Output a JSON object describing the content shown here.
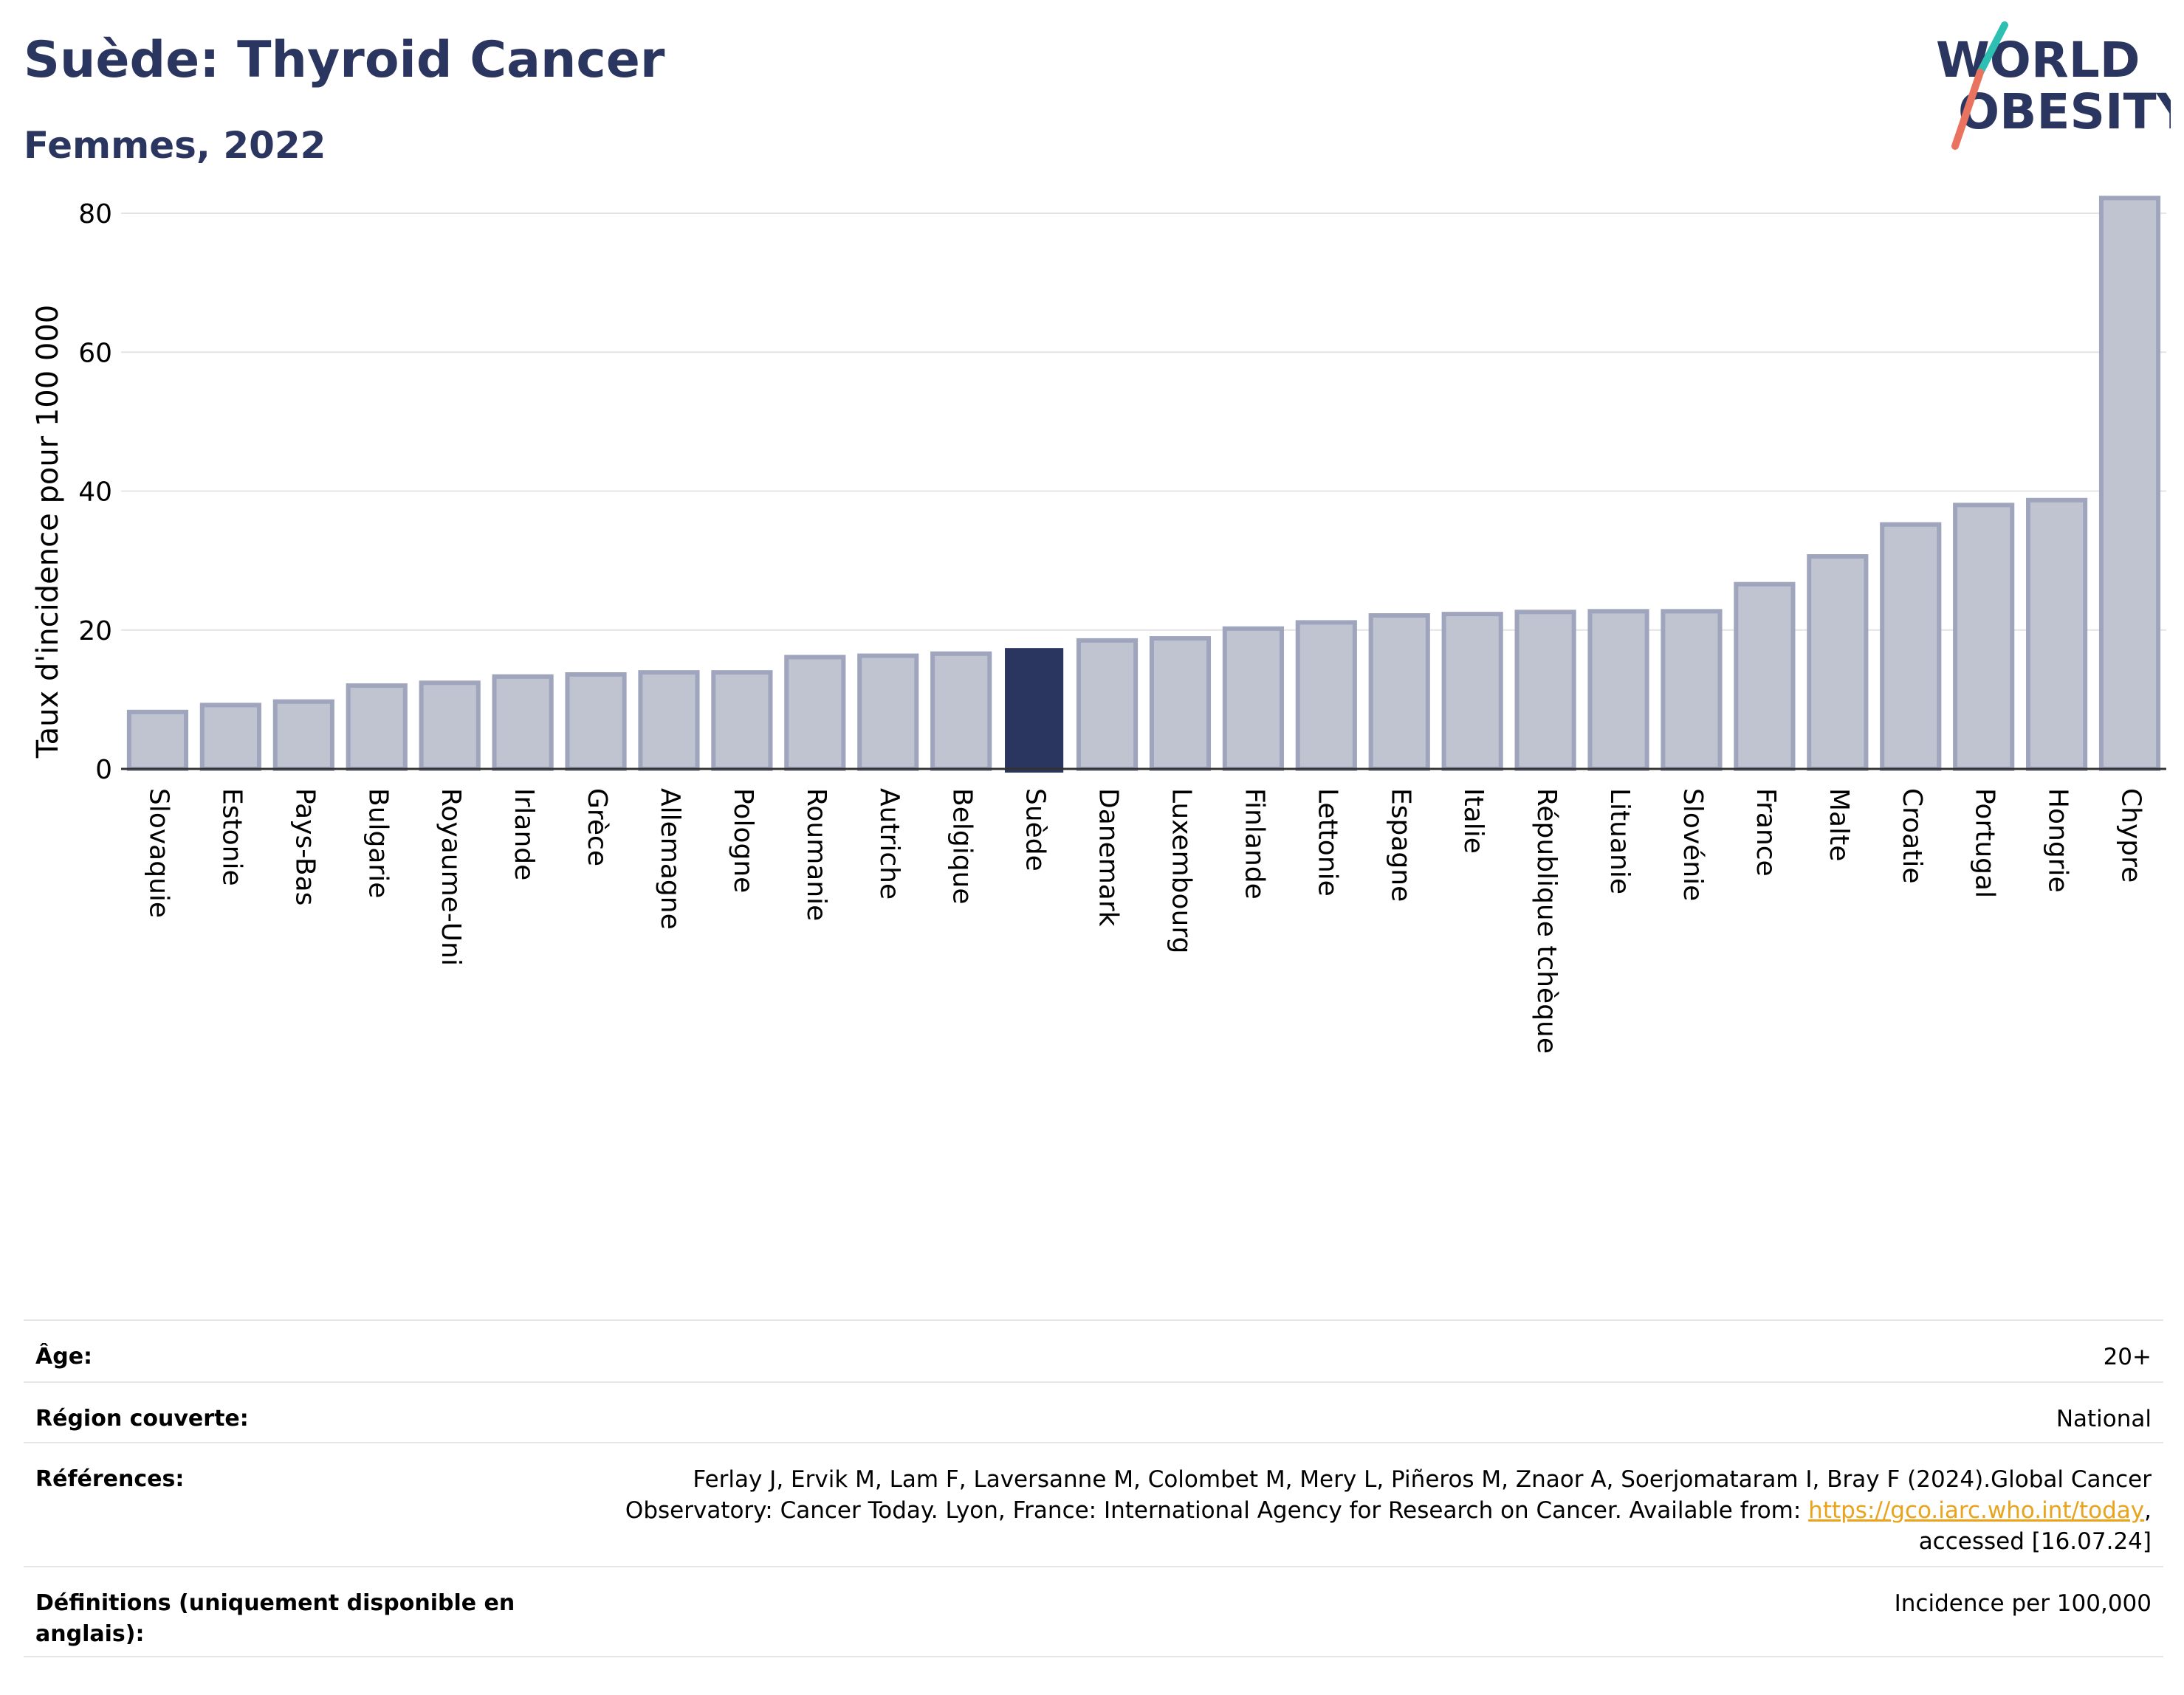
{
  "header": {
    "title": "Suède: Thyroid Cancer",
    "subtitle": "Femmes, 2022"
  },
  "logo": {
    "line1": "WORLD",
    "line2": "OBESITY",
    "slash_colors": [
      "#2ebfb3",
      "#e9735f"
    ]
  },
  "colors": {
    "bar": "#c0c3d0",
    "bar_border": "#9fa5bc",
    "highlight": "#2b3660",
    "title": "#2b3660",
    "link": "#e9a31c"
  },
  "chart_data": {
    "type": "bar",
    "ylabel": "Taux d'incidence pour 100 000",
    "ylim": [
      0,
      85
    ],
    "yticks": [
      0,
      20,
      40,
      60,
      80
    ],
    "grid": true,
    "highlight": "Suède",
    "categories": [
      "Slovaquie",
      "Estonie",
      "Pays-Bas",
      "Bulgarie",
      "Royaume-Uni",
      "Irlande",
      "Grèce",
      "Allemagne",
      "Pologne",
      "Roumanie",
      "Autriche",
      "Belgique",
      "Suède",
      "Danemark",
      "Luxembourg",
      "Finlande",
      "Lettonie",
      "Espagne",
      "Italie",
      "République tchèque",
      "Lituanie",
      "Slovénie",
      "France",
      "Malte",
      "Croatie",
      "Portugal",
      "Hongrie",
      "Chypre"
    ],
    "values": [
      8.2,
      9.2,
      9.7,
      12.0,
      12.4,
      13.3,
      13.6,
      13.9,
      13.9,
      16.1,
      16.3,
      16.6,
      17.3,
      18.5,
      18.8,
      20.2,
      21.1,
      22.1,
      22.3,
      22.6,
      22.7,
      22.7,
      26.6,
      30.6,
      35.2,
      38.0,
      38.7,
      82.2
    ]
  },
  "meta": {
    "age_label": "Âge:",
    "age_value": "20+",
    "region_label": "Région couverte:",
    "region_value": "National",
    "refs_label": "Références:",
    "refs_line1": "Ferlay J, Ervik M, Lam F, Laversanne M, Colombet M, Mery L, Piñeros M, Znaor A, Soerjomataram I, Bray F (2024).Global Cancer",
    "refs_line2_pre": "Observatory: Cancer Today. Lyon, France: International Agency for Research on Cancer. Available from: ",
    "refs_link": "https://gco.iarc.who.int/today",
    "refs_line2_post": ",",
    "refs_line3": "accessed [16.07.24]",
    "defs_label": "Définitions (uniquement disponible en anglais):",
    "defs_value": "Incidence per 100,000"
  }
}
